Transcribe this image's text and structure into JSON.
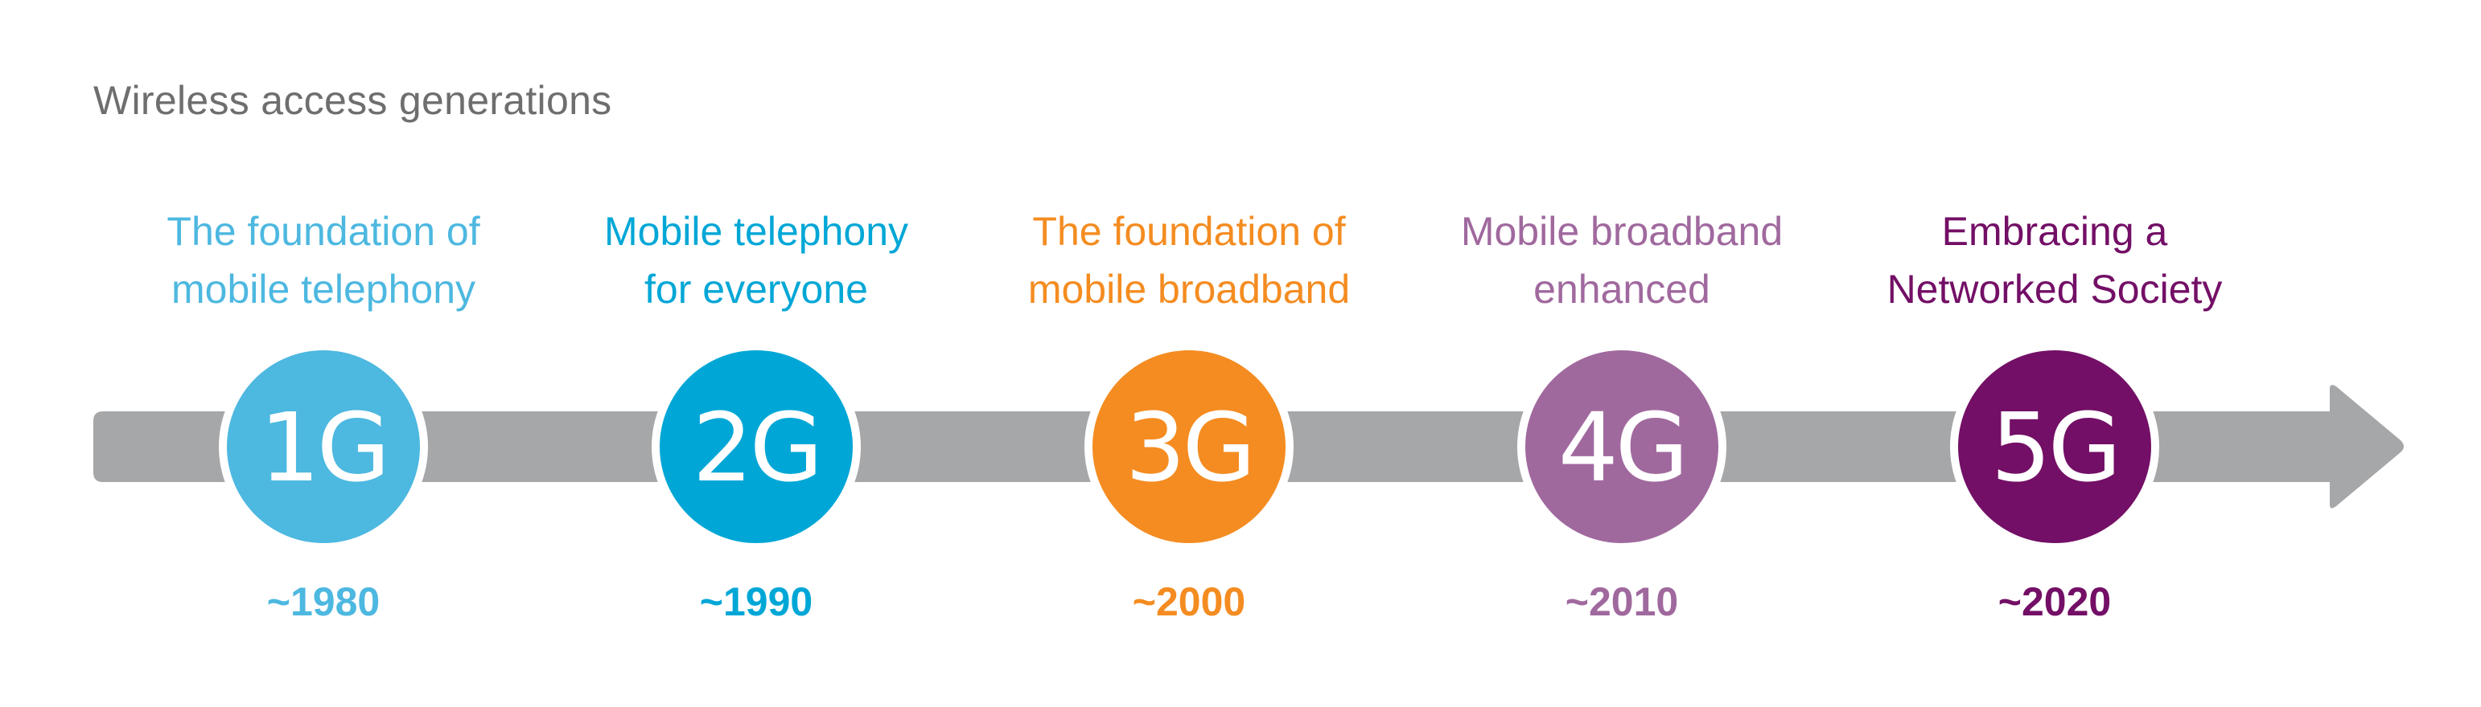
{
  "title": "Wireless access generations",
  "generations": [
    {
      "badge": "1G",
      "tagline": "The foundation of\nmobile telephony",
      "year": "~1980",
      "color": "#4db8e0"
    },
    {
      "badge": "2G",
      "tagline": "Mobile telephony\nfor everyone",
      "year": "~1990",
      "color": "#00a7d6"
    },
    {
      "badge": "3G",
      "tagline": "The foundation of\nmobile broadband",
      "year": "~2000",
      "color": "#f48c21"
    },
    {
      "badge": "4G",
      "tagline": "Mobile broadband\nenhanced",
      "year": "~2010",
      "color": "#a0699e"
    },
    {
      "badge": "5G",
      "tagline": "Embracing a\nNetworked Society",
      "year": "~2020",
      "color": "#730f66"
    }
  ],
  "arrow_color": "#a6a7a9"
}
